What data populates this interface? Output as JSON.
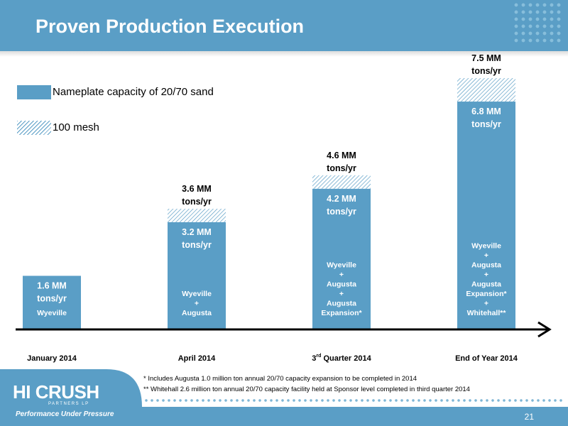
{
  "header": {
    "title": "Proven Production Execution"
  },
  "legend": {
    "solid_label": "Nameplate capacity of 20/70 sand",
    "hatch_label": "100 mesh"
  },
  "colors": {
    "accent": "#5a9ec6",
    "bar": "#5a9ec6"
  },
  "chart_data": {
    "type": "bar",
    "stacked": true,
    "categories": [
      "January 2014",
      "April 2014",
      "3rd Quarter 2014",
      "End of Year 2014"
    ],
    "series": [
      {
        "name": "Nameplate capacity of 20/70 sand",
        "values": [
          1.6,
          3.2,
          4.2,
          6.8
        ]
      },
      {
        "name": "100 mesh",
        "values": [
          0,
          0.4,
          0.4,
          0.7
        ]
      }
    ],
    "ylim": [
      0,
      7.5
    ],
    "grid": false,
    "legend_position": "top-left",
    "inner_labels": [
      "1.6 MM tons/yr",
      "3.2 MM tons/yr",
      "4.2 MM tons/yr",
      "6.8 MM tons/yr"
    ],
    "total_labels": [
      "",
      "3.6 MM tons/yr",
      "4.6 MM tons/yr",
      "7.5 MM tons/yr"
    ],
    "facility_labels": [
      [
        "Wyeville"
      ],
      [
        "Wyeville",
        "+",
        "Augusta"
      ],
      [
        "Wyeville",
        "+",
        "Augusta",
        "+",
        "Augusta",
        "Expansion*"
      ],
      [
        "Wyeville",
        "+",
        "Augusta",
        "+",
        "Augusta",
        "Expansion*",
        "+",
        "Whitehall**"
      ]
    ]
  },
  "footnotes": [
    "*  Includes Augusta 1.0 million ton annual 20/70 capacity expansion to be completed in 2014",
    "**  Whitehall 2.6 million ton annual 20/70 capacity facility held at Sponsor level completed in third quarter 2014"
  ],
  "logo": {
    "main": "HI CRUSH",
    "sub": "PARTNERS LP",
    "tagline": "Performance Under Pressure"
  },
  "page_number": "21"
}
